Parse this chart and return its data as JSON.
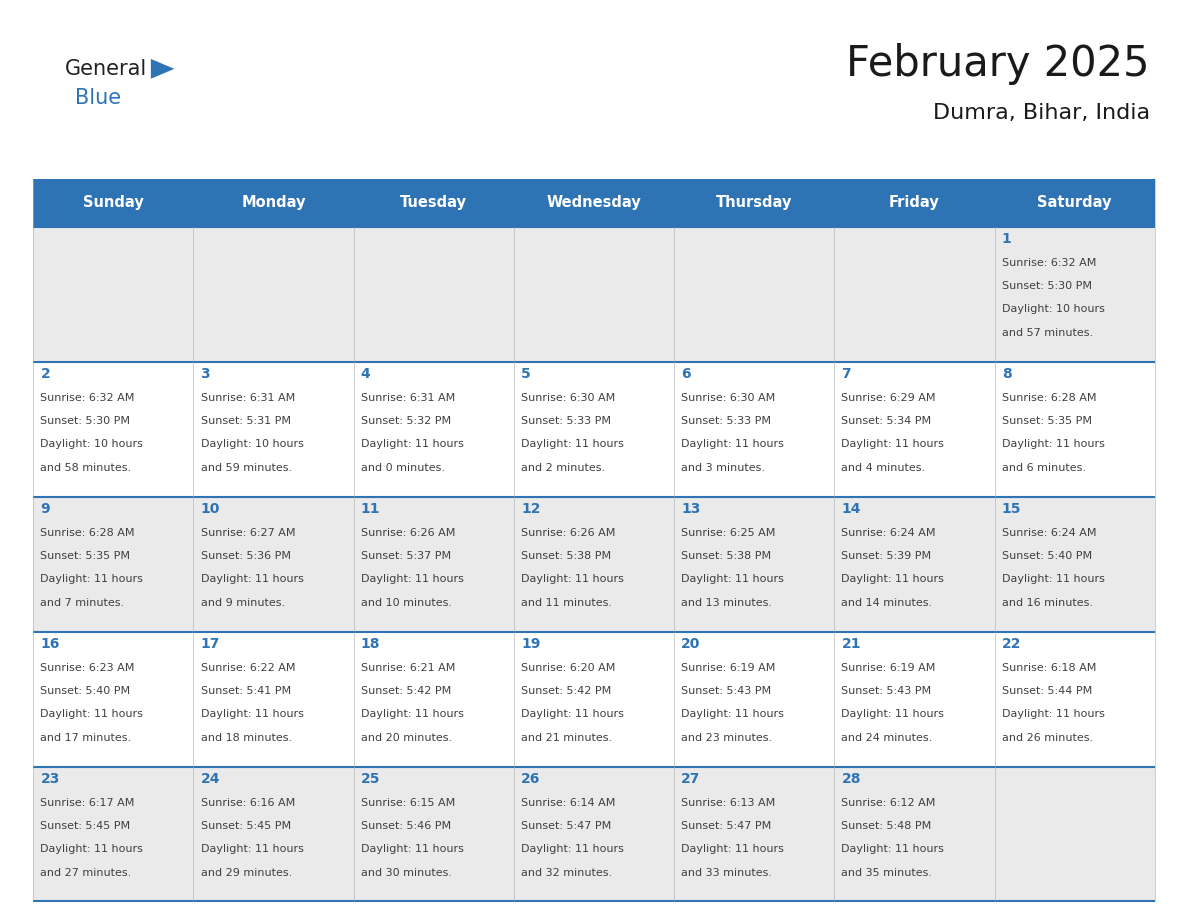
{
  "title": "February 2025",
  "subtitle": "Dumra, Bihar, India",
  "days_of_week": [
    "Sunday",
    "Monday",
    "Tuesday",
    "Wednesday",
    "Thursday",
    "Friday",
    "Saturday"
  ],
  "header_bg": "#2E74B5",
  "header_text": "#FFFFFF",
  "cell_bg_even": "#EAEAEA",
  "cell_bg_odd": "#FFFFFF",
  "border_color": "#2E74B5",
  "day_num_color": "#2E74B5",
  "text_color": "#404040",
  "title_color": "#1a1a1a",
  "logo_general_color": "#222222",
  "logo_blue_color": "#2E74B5",
  "fig_width": 11.88,
  "fig_height": 9.18,
  "dpi": 100,
  "calendar_data": [
    [
      null,
      null,
      null,
      null,
      null,
      null,
      {
        "day": 1,
        "sunrise": "6:32 AM",
        "sunset": "5:30 PM",
        "daylight": "10 hours and 57 minutes."
      }
    ],
    [
      {
        "day": 2,
        "sunrise": "6:32 AM",
        "sunset": "5:30 PM",
        "daylight": "10 hours and 58 minutes."
      },
      {
        "day": 3,
        "sunrise": "6:31 AM",
        "sunset": "5:31 PM",
        "daylight": "10 hours and 59 minutes."
      },
      {
        "day": 4,
        "sunrise": "6:31 AM",
        "sunset": "5:32 PM",
        "daylight": "11 hours and 0 minutes."
      },
      {
        "day": 5,
        "sunrise": "6:30 AM",
        "sunset": "5:33 PM",
        "daylight": "11 hours and 2 minutes."
      },
      {
        "day": 6,
        "sunrise": "6:30 AM",
        "sunset": "5:33 PM",
        "daylight": "11 hours and 3 minutes."
      },
      {
        "day": 7,
        "sunrise": "6:29 AM",
        "sunset": "5:34 PM",
        "daylight": "11 hours and 4 minutes."
      },
      {
        "day": 8,
        "sunrise": "6:28 AM",
        "sunset": "5:35 PM",
        "daylight": "11 hours and 6 minutes."
      }
    ],
    [
      {
        "day": 9,
        "sunrise": "6:28 AM",
        "sunset": "5:35 PM",
        "daylight": "11 hours and 7 minutes."
      },
      {
        "day": 10,
        "sunrise": "6:27 AM",
        "sunset": "5:36 PM",
        "daylight": "11 hours and 9 minutes."
      },
      {
        "day": 11,
        "sunrise": "6:26 AM",
        "sunset": "5:37 PM",
        "daylight": "11 hours and 10 minutes."
      },
      {
        "day": 12,
        "sunrise": "6:26 AM",
        "sunset": "5:38 PM",
        "daylight": "11 hours and 11 minutes."
      },
      {
        "day": 13,
        "sunrise": "6:25 AM",
        "sunset": "5:38 PM",
        "daylight": "11 hours and 13 minutes."
      },
      {
        "day": 14,
        "sunrise": "6:24 AM",
        "sunset": "5:39 PM",
        "daylight": "11 hours and 14 minutes."
      },
      {
        "day": 15,
        "sunrise": "6:24 AM",
        "sunset": "5:40 PM",
        "daylight": "11 hours and 16 minutes."
      }
    ],
    [
      {
        "day": 16,
        "sunrise": "6:23 AM",
        "sunset": "5:40 PM",
        "daylight": "11 hours and 17 minutes."
      },
      {
        "day": 17,
        "sunrise": "6:22 AM",
        "sunset": "5:41 PM",
        "daylight": "11 hours and 18 minutes."
      },
      {
        "day": 18,
        "sunrise": "6:21 AM",
        "sunset": "5:42 PM",
        "daylight": "11 hours and 20 minutes."
      },
      {
        "day": 19,
        "sunrise": "6:20 AM",
        "sunset": "5:42 PM",
        "daylight": "11 hours and 21 minutes."
      },
      {
        "day": 20,
        "sunrise": "6:19 AM",
        "sunset": "5:43 PM",
        "daylight": "11 hours and 23 minutes."
      },
      {
        "day": 21,
        "sunrise": "6:19 AM",
        "sunset": "5:43 PM",
        "daylight": "11 hours and 24 minutes."
      },
      {
        "day": 22,
        "sunrise": "6:18 AM",
        "sunset": "5:44 PM",
        "daylight": "11 hours and 26 minutes."
      }
    ],
    [
      {
        "day": 23,
        "sunrise": "6:17 AM",
        "sunset": "5:45 PM",
        "daylight": "11 hours and 27 minutes."
      },
      {
        "day": 24,
        "sunrise": "6:16 AM",
        "sunset": "5:45 PM",
        "daylight": "11 hours and 29 minutes."
      },
      {
        "day": 25,
        "sunrise": "6:15 AM",
        "sunset": "5:46 PM",
        "daylight": "11 hours and 30 minutes."
      },
      {
        "day": 26,
        "sunrise": "6:14 AM",
        "sunset": "5:47 PM",
        "daylight": "11 hours and 32 minutes."
      },
      {
        "day": 27,
        "sunrise": "6:13 AM",
        "sunset": "5:47 PM",
        "daylight": "11 hours and 33 minutes."
      },
      {
        "day": 28,
        "sunrise": "6:12 AM",
        "sunset": "5:48 PM",
        "daylight": "11 hours and 35 minutes."
      },
      null
    ]
  ]
}
